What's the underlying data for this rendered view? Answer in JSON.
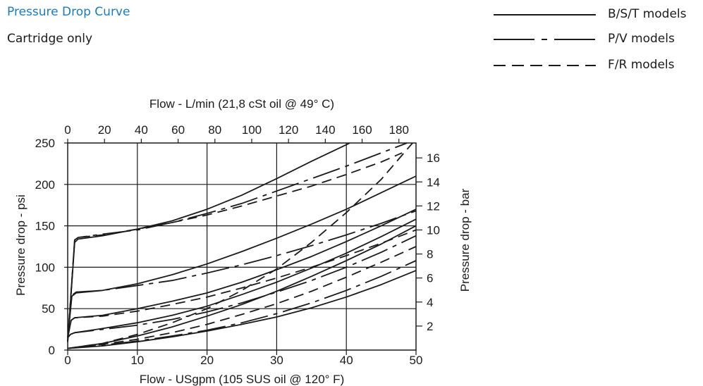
{
  "header": {
    "title": "Pressure Drop Curve",
    "subtitle": "Cartridge only"
  },
  "legend": {
    "items": [
      {
        "label": "B/S/T models",
        "style": "solid"
      },
      {
        "label": "P/V models",
        "style": "dashdot"
      },
      {
        "label": "F/R models",
        "style": "dashed"
      }
    ]
  },
  "chart_data": {
    "type": "line",
    "title": "Pressure Drop Curve",
    "subtitle": "Cartridge only",
    "xlabel": "Flow - USgpm (105 SUS oil @ 120° F)",
    "ylabel": "Pressure drop - psi",
    "x2label": "Flow - L/min (21,8 cSt oil @ 49° C)",
    "y2label": "Pressure drop - bar",
    "xlim": [
      0,
      50
    ],
    "ylim": [
      0,
      250
    ],
    "x2lim": [
      0,
      189.3
    ],
    "y2lim": [
      0,
      17.24
    ],
    "xticks": [
      "0",
      "10",
      "20",
      "30",
      "40",
      "50"
    ],
    "yticks": [
      "0",
      "50",
      "100",
      "150",
      "200",
      "250"
    ],
    "x2ticks": [
      "0",
      "20",
      "40",
      "60",
      "80",
      "100",
      "120",
      "140",
      "160",
      "180"
    ],
    "y2ticks": [
      "2",
      "4",
      "6",
      "8",
      "10",
      "12",
      "14",
      "16"
    ],
    "grid": true,
    "legend_position": "top-right",
    "series": [
      {
        "style": "solid",
        "x": [
          0,
          1,
          1.5,
          5,
          10,
          15,
          20,
          25,
          30,
          35,
          40,
          40.5
        ],
        "y": [
          10,
          130,
          134,
          138,
          146,
          156,
          170,
          187,
          207,
          228,
          248,
          250
        ]
      },
      {
        "style": "dashdot",
        "x": [
          0,
          1,
          1.5,
          5,
          10,
          15,
          20,
          25,
          30,
          35,
          40,
          45,
          48.7
        ],
        "y": [
          10,
          133,
          136,
          140,
          145,
          154,
          165,
          177,
          192,
          207,
          222,
          238,
          250
        ]
      },
      {
        "style": "dashed",
        "x": [
          0,
          1,
          1.5,
          5,
          10,
          15,
          20,
          25,
          30,
          35,
          40,
          45,
          48
        ],
        "y": [
          10,
          133,
          136,
          139,
          146,
          154,
          163,
          174,
          186,
          198,
          212,
          227,
          238
        ]
      },
      {
        "style": "solid",
        "x": [
          0,
          0.6,
          1.2,
          5,
          10,
          15,
          20,
          25,
          30,
          35,
          40,
          45,
          50
        ],
        "y": [
          15,
          65,
          69,
          72,
          80,
          91,
          104,
          119,
          135,
          152,
          170,
          190,
          210
        ]
      },
      {
        "style": "dashdot",
        "x": [
          0,
          0.6,
          1.2,
          5,
          10,
          15,
          20,
          25,
          30,
          35,
          40,
          45,
          50
        ],
        "y": [
          15,
          66,
          70,
          72,
          78,
          84,
          93,
          103,
          114,
          126,
          139,
          153,
          168
        ]
      },
      {
        "style": "solid",
        "x": [
          0,
          0.5,
          1,
          5,
          10,
          15,
          20,
          25,
          30,
          35,
          40,
          45,
          50
        ],
        "y": [
          15,
          36,
          39,
          42,
          50,
          59,
          69,
          82,
          97,
          113,
          131,
          150,
          170
        ]
      },
      {
        "style": "dashed",
        "x": [
          0,
          0.5,
          1,
          5,
          10,
          15,
          20,
          25,
          30,
          35,
          40,
          45,
          50
        ],
        "y": [
          15,
          36,
          39,
          41,
          47,
          55,
          64,
          75,
          87,
          100,
          114,
          129,
          145
        ]
      },
      {
        "style": "solid",
        "x": [
          0,
          0.4,
          1,
          5,
          10,
          15,
          20,
          25,
          30,
          35,
          40,
          45,
          50
        ],
        "y": [
          15,
          19,
          21,
          26,
          33,
          42,
          53,
          67,
          82,
          99,
          117,
          137,
          158
        ]
      },
      {
        "style": "dashdot",
        "x": [
          0,
          0.4,
          1,
          5,
          10,
          15,
          20,
          25,
          30,
          35,
          40,
          45,
          50
        ],
        "y": [
          15,
          19,
          21,
          25,
          30,
          37,
          46,
          57,
          70,
          84,
          100,
          118,
          138
        ]
      },
      {
        "style": "solid",
        "x": [
          0,
          5,
          10,
          15,
          20,
          25,
          30,
          35,
          40,
          45,
          50
        ],
        "y": [
          2,
          8,
          17,
          28,
          41,
          55,
          71,
          89,
          108,
          128,
          150
        ]
      },
      {
        "style": "dashed",
        "x": [
          0,
          5,
          10,
          15,
          20,
          25,
          30,
          35,
          40,
          45,
          50
        ],
        "y": [
          2,
          7,
          13,
          21,
          31,
          43,
          56,
          71,
          88,
          106,
          125
        ]
      },
      {
        "style": "dashed",
        "x": [
          0,
          5,
          10,
          15,
          20,
          25,
          30,
          35,
          40,
          45,
          49.5
        ],
        "y": [
          2,
          8,
          19,
          33,
          50,
          72,
          98,
          130,
          166,
          206,
          250
        ]
      },
      {
        "style": "dashdot",
        "x": [
          0,
          5,
          10,
          15,
          20,
          25,
          30,
          35,
          40,
          45,
          50
        ],
        "y": [
          2,
          6,
          11,
          17,
          24,
          33,
          44,
          57,
          72,
          89,
          108
        ]
      },
      {
        "style": "solid",
        "x": [
          0,
          5,
          10,
          15,
          20,
          25,
          30,
          35,
          40,
          45,
          50
        ],
        "y": [
          2,
          5,
          10,
          16,
          23,
          31,
          40,
          51,
          64,
          79,
          96
        ]
      }
    ]
  },
  "colors": {
    "line": "#1a1a1a",
    "grid": "#1a1a1a",
    "title": "#1f7ab8"
  }
}
